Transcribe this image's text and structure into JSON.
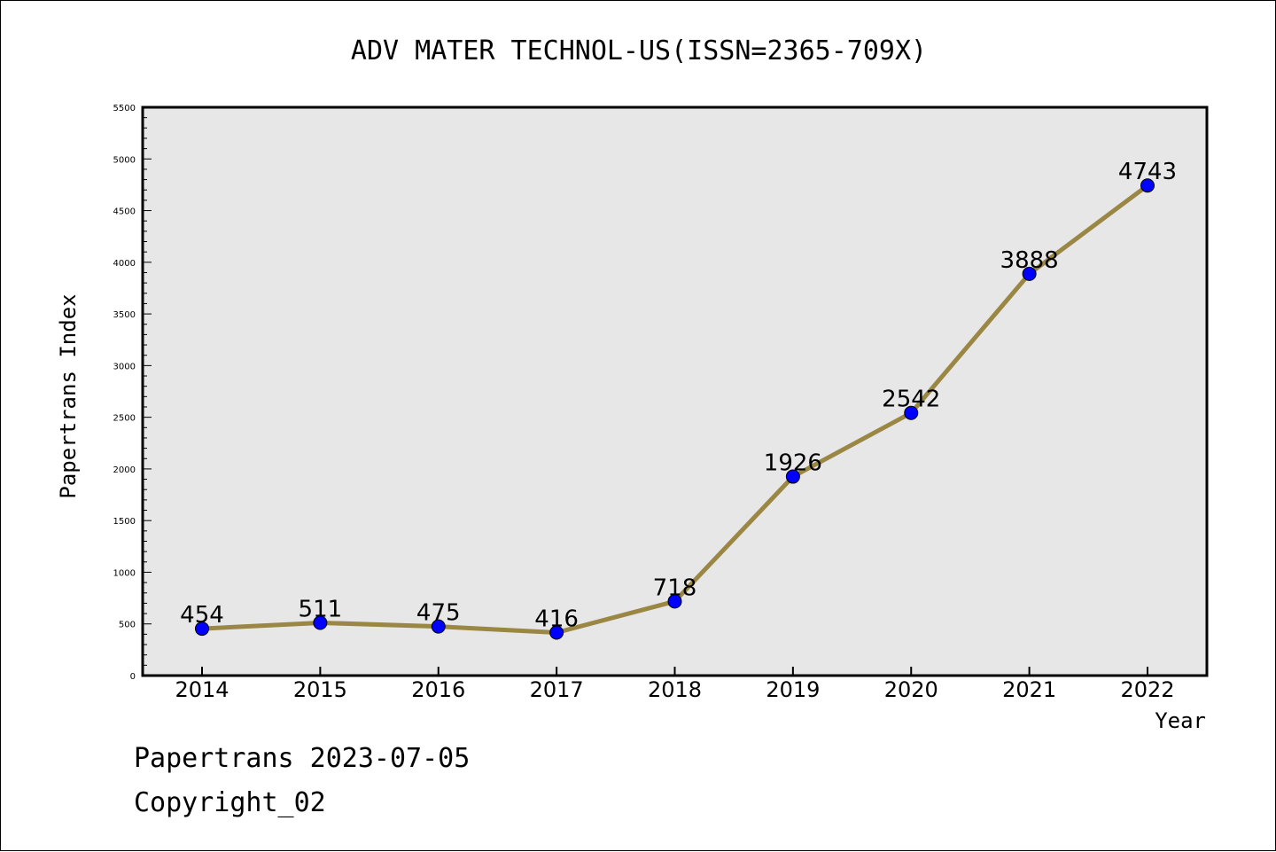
{
  "chart_data": {
    "type": "line",
    "title": "ADV MATER TECHNOL-US(ISSN=2365-709X)",
    "xlabel": "Year",
    "ylabel": "Papertrans Index",
    "categories": [
      "2014",
      "2015",
      "2016",
      "2017",
      "2018",
      "2019",
      "2020",
      "2021",
      "2022"
    ],
    "series": [
      {
        "values": [
          454,
          511,
          475,
          416,
          718,
          1926,
          2542,
          3888,
          4743
        ],
        "data_labels": [
          "454",
          "511",
          "475",
          "416",
          "718",
          "1926",
          "2542",
          "3888",
          "4743"
        ]
      }
    ],
    "ylim": [
      0,
      5500
    ],
    "y_ticks": [
      "0",
      "500",
      "1000",
      "1500",
      "2000",
      "2500",
      "3000",
      "3500",
      "4000",
      "4500",
      "5000",
      "5500"
    ],
    "grid": false,
    "legend": "none",
    "colors": {
      "plot_background": "#e7e7e7",
      "line": "#9a8743",
      "marker": "#0000ff"
    }
  },
  "footer": {
    "date_text": "Papertrans 2023-07-05",
    "copyright_text": "Copyright_02"
  }
}
